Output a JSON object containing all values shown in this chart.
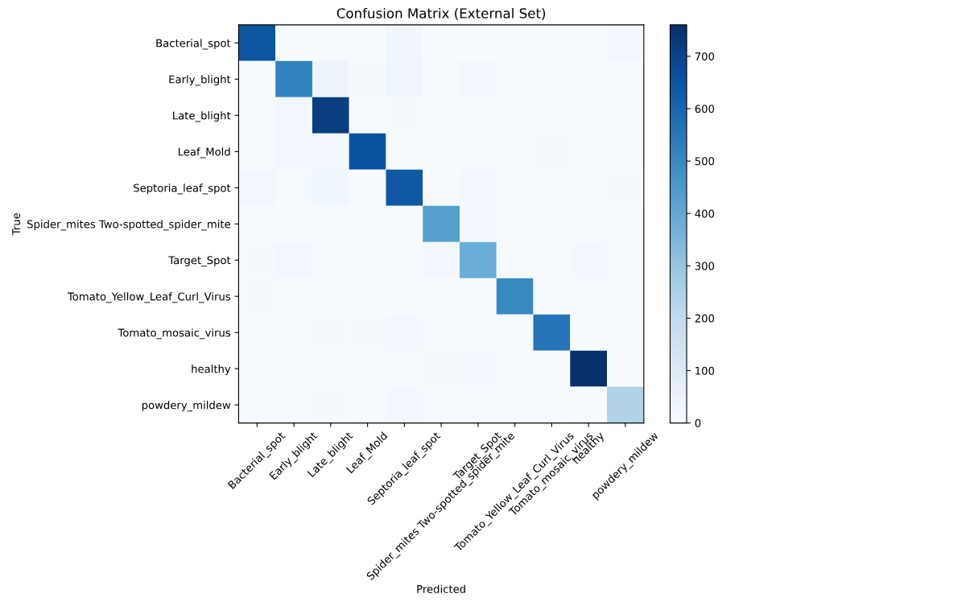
{
  "chart_data": {
    "type": "heatmap",
    "title": "Confusion Matrix (External Set)",
    "xlabel": "Predicted",
    "ylabel": "True",
    "categories": [
      "Bacterial_spot",
      "Early_blight",
      "Late_blight",
      "Leaf_Mold",
      "Septoria_leaf_spot",
      "Spider_mites Two-spotted_spider_mite",
      "Target_Spot",
      "Tomato_Yellow_Leaf_Curl_Virus",
      "Tomato_mosaic_virus",
      "healthy",
      "powdery_mildew"
    ],
    "y_categories": [
      "Bacterial_spot",
      "Early_blight",
      "Late_blight",
      "Leaf_Mold",
      "Septoria_leaf_spot",
      "Spider_mites Two-spotted_spider_mite",
      "Target_Spot",
      "Tomato_Yellow_Leaf_Curl_Virus",
      "Tomato_mosaic_virus",
      "healthy",
      "powdery_mildew"
    ],
    "cells": [
      [
        650,
        5,
        8,
        3,
        30,
        0,
        2,
        2,
        0,
        0,
        15
      ],
      [
        5,
        520,
        40,
        10,
        35,
        3,
        20,
        8,
        5,
        0,
        5
      ],
      [
        8,
        15,
        720,
        5,
        10,
        3,
        5,
        5,
        5,
        3,
        8
      ],
      [
        5,
        15,
        15,
        660,
        5,
        3,
        3,
        5,
        10,
        3,
        5
      ],
      [
        25,
        8,
        30,
        5,
        640,
        5,
        15,
        3,
        3,
        3,
        10
      ],
      [
        3,
        3,
        3,
        3,
        3,
        430,
        25,
        5,
        3,
        3,
        3
      ],
      [
        10,
        25,
        5,
        3,
        8,
        25,
        380,
        5,
        3,
        15,
        3
      ],
      [
        12,
        5,
        5,
        3,
        3,
        8,
        3,
        500,
        3,
        3,
        3
      ],
      [
        5,
        5,
        10,
        10,
        15,
        8,
        3,
        3,
        560,
        3,
        3
      ],
      [
        3,
        3,
        5,
        3,
        3,
        10,
        15,
        3,
        3,
        760,
        5
      ],
      [
        5,
        5,
        10,
        8,
        20,
        3,
        3,
        3,
        3,
        8,
        240
      ]
    ],
    "clim": [
      0,
      760
    ],
    "cticks": [
      0,
      100,
      200,
      300,
      400,
      500,
      600,
      700
    ],
    "grid": false
  }
}
